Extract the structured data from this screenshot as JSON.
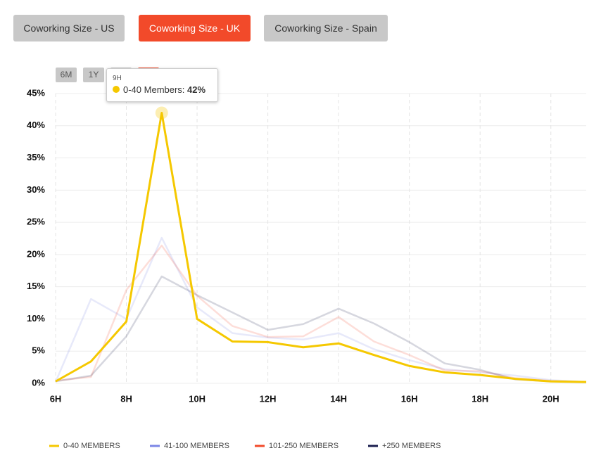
{
  "tabs": [
    "Coworking Size - US",
    "Coworking Size - UK",
    "Coworking Size - Spain"
  ],
  "active_tab": 1,
  "range_buttons": [
    "6M",
    "1Y"
  ],
  "chart_data": {
    "type": "line",
    "x": [
      6,
      7,
      8,
      9,
      10,
      11,
      12,
      13,
      14,
      15,
      16,
      17,
      18,
      19,
      20,
      21
    ],
    "xlim": [
      6,
      21
    ],
    "xticks": [
      {
        "value": 6,
        "label": "6H"
      },
      {
        "value": 8,
        "label": "8H"
      },
      {
        "value": 10,
        "label": "10H"
      },
      {
        "value": 12,
        "label": "12H"
      },
      {
        "value": 14,
        "label": "14H"
      },
      {
        "value": 16,
        "label": "16H"
      },
      {
        "value": 18,
        "label": "18H"
      },
      {
        "value": 20,
        "label": "20H"
      }
    ],
    "ylim": [
      0,
      45
    ],
    "yticks": [
      {
        "value": 0,
        "label": "0%"
      },
      {
        "value": 5,
        "label": "5%"
      },
      {
        "value": 10,
        "label": "10%"
      },
      {
        "value": 15,
        "label": "15%"
      },
      {
        "value": 20,
        "label": "20%"
      },
      {
        "value": 25,
        "label": "25%"
      },
      {
        "value": 30,
        "label": "30%"
      },
      {
        "value": 35,
        "label": "35%"
      },
      {
        "value": 40,
        "label": "40%"
      },
      {
        "value": 45,
        "label": "45%"
      }
    ],
    "grid": true,
    "highlighted_series": 0,
    "series": [
      {
        "name": "0-40 MEMBERS",
        "color": "#f5c800",
        "values": [
          0.3,
          3.4,
          9.6,
          42,
          10,
          6.5,
          6.4,
          5.6,
          6.2,
          4.4,
          2.7,
          1.7,
          1.3,
          0.7,
          0.3,
          0.2
        ]
      },
      {
        "name": "41-100 MEMBERS",
        "color": "#7b86e6",
        "values": [
          0.2,
          13.1,
          10,
          22.6,
          11.8,
          7.8,
          7.1,
          6.8,
          7.8,
          5.3,
          3.6,
          2.2,
          1.7,
          1.2,
          0.5,
          0.2
        ]
      },
      {
        "name": "101-250 MEMBERS",
        "color": "#f24a2a",
        "values": [
          0.4,
          1,
          14.5,
          21.4,
          13.6,
          8.9,
          7.2,
          7.3,
          10.3,
          6.5,
          4.4,
          2,
          1.9,
          0.8,
          0.4,
          0.2
        ]
      },
      {
        "name": "+250 MEMBERS",
        "color": "#1b1f4f",
        "values": [
          0.3,
          1.2,
          7.3,
          16.6,
          13.7,
          11,
          8.3,
          9.2,
          11.6,
          9.3,
          6.4,
          3.1,
          2.1,
          0.6,
          0.3,
          0.2
        ]
      }
    ],
    "tooltip": {
      "x_label": "9H",
      "x": 9,
      "series_label": "0-40 Members:",
      "value": 42,
      "value_label": "42%"
    }
  }
}
